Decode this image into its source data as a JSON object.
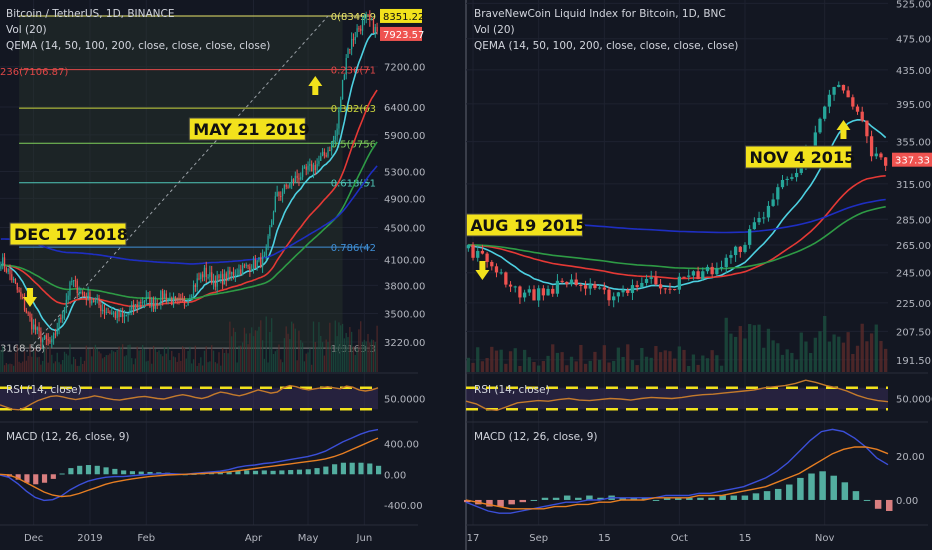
{
  "colors": {
    "bg": "#131722",
    "grid": "#1e2230",
    "up": "#26a69a",
    "down": "#ef5350",
    "ema14": "#4dd0e1",
    "ema50": "#e53935",
    "ema100": "#2e9b45",
    "ema200": "#1e2ec2",
    "rsi": "#c47a2c",
    "macd": "#3b4fd8",
    "signal": "#e67e22",
    "yellow": "#f2e21c"
  },
  "chart_data": [
    {
      "type": "candlestick",
      "title": "Bitcoin / TetherUS, 1D, BINANCE",
      "vol_label": "Vol (20)",
      "qema_label": "QEMA (14, 50, 100, 200, close, close, close, close)",
      "ylim": [
        2950,
        8750
      ],
      "y_ticks": [
        "3220.00",
        "3500.00",
        "3800.00",
        "4100.00",
        "4500.00",
        "4900.00",
        "5300.00",
        "5900.00",
        "6400.00",
        "7200.00"
      ],
      "y_tick_values": [
        3220,
        3500,
        3800,
        4100,
        4500,
        4900,
        5300,
        5900,
        6400,
        7200
      ],
      "price_tags": [
        {
          "text": "8351.22",
          "value": 8351.22,
          "color": "#f2e21c"
        },
        {
          "text": "7923.57",
          "value": 7923.57,
          "color": "#ef5350"
        }
      ],
      "x_ticks": [
        "Dec",
        "2019",
        "Feb",
        "Apr",
        "May",
        "Jun"
      ],
      "x_tick_days": [
        18,
        49,
        80,
        139,
        169,
        200
      ],
      "days": 208,
      "fib_levels": [
        {
          "label": "0(8349.9",
          "value": 8349.9,
          "color": "#e9e46b"
        },
        {
          "label": "0.236(71",
          "value": 7140,
          "color": "#e04848"
        },
        {
          "label": "0.382(63",
          "value": 6380,
          "color": "#c9d33d"
        },
        {
          "label": "0.5(5756",
          "value": 5756,
          "color": "#7fcf5a"
        },
        {
          "label": "0.618(51",
          "value": 5130,
          "color": "#4fc7b8"
        },
        {
          "label": "0.786(42",
          "value": 4250,
          "color": "#3f8fd6"
        },
        {
          "label": "1(3163.3",
          "value": 3163.3,
          "color": "#808080"
        }
      ],
      "fib_left_labels": [
        {
          "text": "236(7106.87)",
          "value": 7106.87,
          "color": "#e04848"
        },
        {
          "text": "3168.56)",
          "value": 3168.56,
          "color": "#bfbfbf"
        }
      ],
      "annotations": [
        {
          "text": "DEC 17 2018",
          "day": 16,
          "value": 3163
        },
        {
          "text": "MAY 21 2019",
          "day": 173,
          "value": 7100
        }
      ],
      "rsi": {
        "label": "RSI (14, close)",
        "tick": "50.0000",
        "upper": 70,
        "lower": 30,
        "values": [
          38,
          34,
          30,
          29,
          33,
          40,
          46,
          50,
          54,
          55,
          53,
          50,
          48,
          50,
          52,
          55,
          53,
          50,
          48,
          47,
          49,
          51,
          53,
          54,
          52,
          50,
          49,
          52,
          55,
          57,
          55,
          52,
          50,
          53,
          58,
          62,
          60,
          57,
          55,
          58,
          62,
          66,
          63,
          60,
          62,
          70,
          74,
          72,
          68,
          66,
          68,
          70,
          72,
          70,
          68,
          73,
          71,
          66,
          64,
          66,
          70
        ]
      },
      "macd": {
        "label": "MACD (12, 26, close, 9)",
        "ticks": [
          "400.00",
          "0.00",
          "-400.00"
        ],
        "tick_values": [
          400,
          0,
          -400
        ],
        "ylim": [
          -620,
          640
        ],
        "macd": [
          -10,
          -40,
          -120,
          -220,
          -300,
          -340,
          -330,
          -280,
          -200,
          -140,
          -90,
          -60,
          -40,
          -30,
          -30,
          -20,
          -10,
          0,
          5,
          10,
          5,
          0,
          10,
          20,
          30,
          40,
          60,
          90,
          110,
          120,
          140,
          150,
          170,
          190,
          210,
          230,
          260,
          300,
          360,
          420,
          470,
          520,
          560,
          580
        ],
        "signal": [
          0,
          -10,
          -50,
          -110,
          -170,
          -230,
          -270,
          -290,
          -280,
          -250,
          -210,
          -170,
          -130,
          -100,
          -80,
          -60,
          -45,
          -30,
          -20,
          -10,
          -5,
          0,
          5,
          10,
          15,
          22,
          32,
          45,
          60,
          75,
          90,
          105,
          120,
          135,
          150,
          165,
          180,
          200,
          230,
          270,
          320,
          370,
          420,
          470
        ]
      }
    },
    {
      "type": "candlestick",
      "title": "BraveNewCoin Liquid Index for Bitcoin, 1D, BNC",
      "vol_label": "Vol (20)",
      "qema_label": "QEMA (14, 50, 100, 200, close, close, close, close)",
      "ylim": [
        185,
        530
      ],
      "y_ticks": [
        "191.50",
        "207.50",
        "225.00",
        "245.00",
        "265.00",
        "285.00",
        "315.00",
        "355.00",
        "395.00",
        "435.00",
        "475.00",
        "525.00"
      ],
      "y_tick_values": [
        191.5,
        207.5,
        225,
        245,
        265,
        285,
        315,
        355,
        395,
        435,
        475,
        525
      ],
      "price_tags": [
        {
          "text": "337.33",
          "value": 337.33,
          "color": "#ef5350"
        }
      ],
      "x_ticks": [
        "17",
        "Sep",
        "15",
        "Oct",
        "15",
        "Nov"
      ],
      "x_tick_days": [
        1,
        15,
        29,
        45,
        59,
        76
      ],
      "days": 90,
      "annotations": [
        {
          "text": "AUG 19 2015",
          "day": 3,
          "value": 232
        },
        {
          "text": "NOV 4 2015",
          "day": 80,
          "value": 405
        }
      ],
      "rsi": {
        "label": "RSI (14, close)",
        "tick": "50.0000",
        "upper": 70,
        "lower": 30,
        "values": [
          45,
          40,
          30,
          28,
          35,
          42,
          44,
          46,
          45,
          48,
          50,
          47,
          46,
          48,
          50,
          49,
          47,
          50,
          52,
          51,
          50,
          52,
          55,
          57,
          58,
          60,
          62,
          64,
          66,
          70,
          72,
          74,
          78,
          84,
          80,
          74,
          70,
          64,
          56,
          50,
          46,
          44
        ]
      },
      "macd": {
        "label": "MACD (12, 26, close, 9)",
        "ticks": [
          "20.00",
          "0.00"
        ],
        "tick_values": [
          20,
          0
        ],
        "ylim": [
          -10,
          34
        ],
        "macd": [
          -1,
          -3,
          -5,
          -6,
          -6,
          -5,
          -4,
          -3,
          -2,
          -1,
          -1,
          0,
          0,
          1,
          1,
          1,
          1,
          1,
          2,
          2,
          2,
          3,
          3,
          4,
          5,
          6,
          8,
          10,
          13,
          17,
          22,
          27,
          31,
          32,
          31,
          28,
          24,
          19,
          16
        ],
        "signal": [
          0,
          -1,
          -2,
          -3,
          -4,
          -4,
          -4,
          -4,
          -3,
          -3,
          -2,
          -2,
          -1,
          -1,
          0,
          0,
          0,
          1,
          1,
          1,
          1,
          2,
          2,
          2,
          3,
          4,
          5,
          6,
          8,
          10,
          12,
          15,
          18,
          21,
          23,
          24,
          24,
          23,
          21
        ]
      }
    }
  ]
}
